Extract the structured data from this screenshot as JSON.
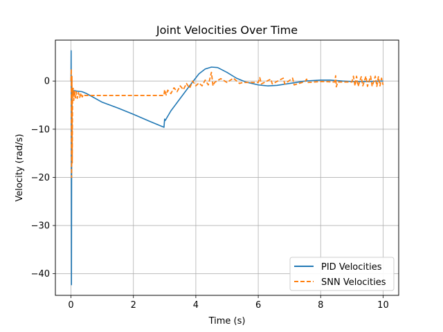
{
  "chart_data": {
    "type": "line",
    "title": "Joint Velocities Over Time",
    "xlabel": "Time (s)",
    "ylabel": "Velocity (rad/s)",
    "xlim": [
      -0.5,
      10.5
    ],
    "ylim": [
      -44.5,
      8.5
    ],
    "xticks": [
      0,
      2,
      4,
      6,
      8,
      10
    ],
    "yticks": [
      0,
      -10,
      -20,
      -30,
      -40
    ],
    "xtick_labels": [
      "0",
      "2",
      "4",
      "6",
      "8",
      "10"
    ],
    "ytick_labels": [
      "0",
      "−10",
      "−20",
      "−30",
      "−40"
    ],
    "grid": true,
    "legend_position": "lower-right",
    "series": [
      {
        "name": "PID Velocities",
        "color": "#1f77b4",
        "style": "solid",
        "points": [
          [
            0,
            0
          ],
          [
            0.005,
            6.3
          ],
          [
            0.01,
            -5
          ],
          [
            0.015,
            -42.3
          ],
          [
            0.02,
            -20
          ],
          [
            0.03,
            -4
          ],
          [
            0.05,
            -2.2
          ],
          [
            0.1,
            -2.0
          ],
          [
            0.2,
            -2.1
          ],
          [
            0.35,
            -2.2
          ],
          [
            0.5,
            -2.6
          ],
          [
            1,
            -4.4
          ],
          [
            1.5,
            -5.6
          ],
          [
            2,
            -6.9
          ],
          [
            2.5,
            -8.3
          ],
          [
            2.98,
            -9.6
          ],
          [
            3.0,
            -7.9
          ],
          [
            3.02,
            -8.2
          ],
          [
            3.2,
            -6.2
          ],
          [
            3.5,
            -3.6
          ],
          [
            3.8,
            -1.0
          ],
          [
            4.1,
            1.5
          ],
          [
            4.3,
            2.5
          ],
          [
            4.5,
            2.9
          ],
          [
            4.7,
            2.8
          ],
          [
            5.0,
            1.8
          ],
          [
            5.3,
            0.6
          ],
          [
            5.6,
            -0.2
          ],
          [
            6.0,
            -0.8
          ],
          [
            6.3,
            -1.0
          ],
          [
            6.6,
            -0.9
          ],
          [
            7.0,
            -0.5
          ],
          [
            7.5,
            0.0
          ],
          [
            8.0,
            0.2
          ],
          [
            8.3,
            0.2
          ],
          [
            8.7,
            0.0
          ],
          [
            9.0,
            -0.1
          ],
          [
            9.5,
            -0.1
          ],
          [
            10,
            0.0
          ]
        ]
      },
      {
        "name": "SNN Velocities",
        "color": "#ff7f0e",
        "style": "dashed",
        "points": [
          [
            0,
            0
          ],
          [
            0.01,
            2.5
          ],
          [
            0.02,
            -20
          ],
          [
            0.03,
            1
          ],
          [
            0.04,
            -17
          ],
          [
            0.05,
            -3
          ],
          [
            0.07,
            -1.5
          ],
          [
            0.09,
            -4
          ],
          [
            0.11,
            -2
          ],
          [
            0.14,
            -3.5
          ],
          [
            0.17,
            -2.2
          ],
          [
            0.2,
            -3.6
          ],
          [
            0.24,
            -2.4
          ],
          [
            0.28,
            -3.4
          ],
          [
            0.32,
            -2.5
          ],
          [
            0.36,
            -3.3
          ],
          [
            0.4,
            -2.8
          ],
          [
            0.45,
            -3.0
          ],
          [
            2.98,
            -3.0
          ],
          [
            3.0,
            -1.8
          ],
          [
            3.05,
            -2.9
          ],
          [
            3.1,
            -1.9
          ],
          [
            3.2,
            -2.6
          ],
          [
            3.3,
            -1.4
          ],
          [
            3.4,
            -2.2
          ],
          [
            3.5,
            -1.0
          ],
          [
            3.6,
            -1.8
          ],
          [
            3.7,
            -0.5
          ],
          [
            3.8,
            -1.5
          ],
          [
            3.9,
            0.0
          ],
          [
            4.0,
            -1.0
          ],
          [
            4.1,
            -0.4
          ],
          [
            4.2,
            -1.0
          ],
          [
            4.3,
            0.2
          ],
          [
            4.4,
            -0.8
          ],
          [
            4.5,
            1.8
          ],
          [
            4.55,
            -1.0
          ],
          [
            4.6,
            -0.3
          ],
          [
            4.8,
            0.5
          ],
          [
            5.0,
            -0.3
          ],
          [
            5.2,
            0.6
          ],
          [
            5.4,
            -0.5
          ],
          [
            5.5,
            -0.3
          ],
          [
            6.0,
            -0.3
          ],
          [
            6.05,
            0.7
          ],
          [
            6.1,
            -0.6
          ],
          [
            6.4,
            0.4
          ],
          [
            6.45,
            -0.6
          ],
          [
            6.8,
            0.6
          ],
          [
            6.85,
            -0.6
          ],
          [
            7.1,
            0.6
          ],
          [
            7.15,
            -0.8
          ],
          [
            7.5,
            -0.1
          ],
          [
            7.55,
            0.4
          ],
          [
            7.6,
            -0.3
          ],
          [
            8.0,
            -0.1
          ],
          [
            8.45,
            -0.2
          ],
          [
            8.48,
            1.1
          ],
          [
            8.5,
            -1.2
          ],
          [
            8.55,
            -0.2
          ],
          [
            9.0,
            -0.2
          ],
          [
            9.05,
            1.0
          ],
          [
            9.1,
            -1.0
          ],
          [
            9.15,
            1.0
          ],
          [
            9.2,
            -1.1
          ],
          [
            9.3,
            0.9
          ],
          [
            9.35,
            -1.0
          ],
          [
            9.45,
            1.0
          ],
          [
            9.5,
            -1.1
          ],
          [
            9.6,
            1.0
          ],
          [
            9.65,
            -1.1
          ],
          [
            9.75,
            1.0
          ],
          [
            9.8,
            -1.1
          ],
          [
            9.85,
            0.9
          ],
          [
            9.9,
            -1.0
          ],
          [
            9.95,
            0.6
          ],
          [
            10.0,
            -0.8
          ]
        ]
      }
    ]
  }
}
